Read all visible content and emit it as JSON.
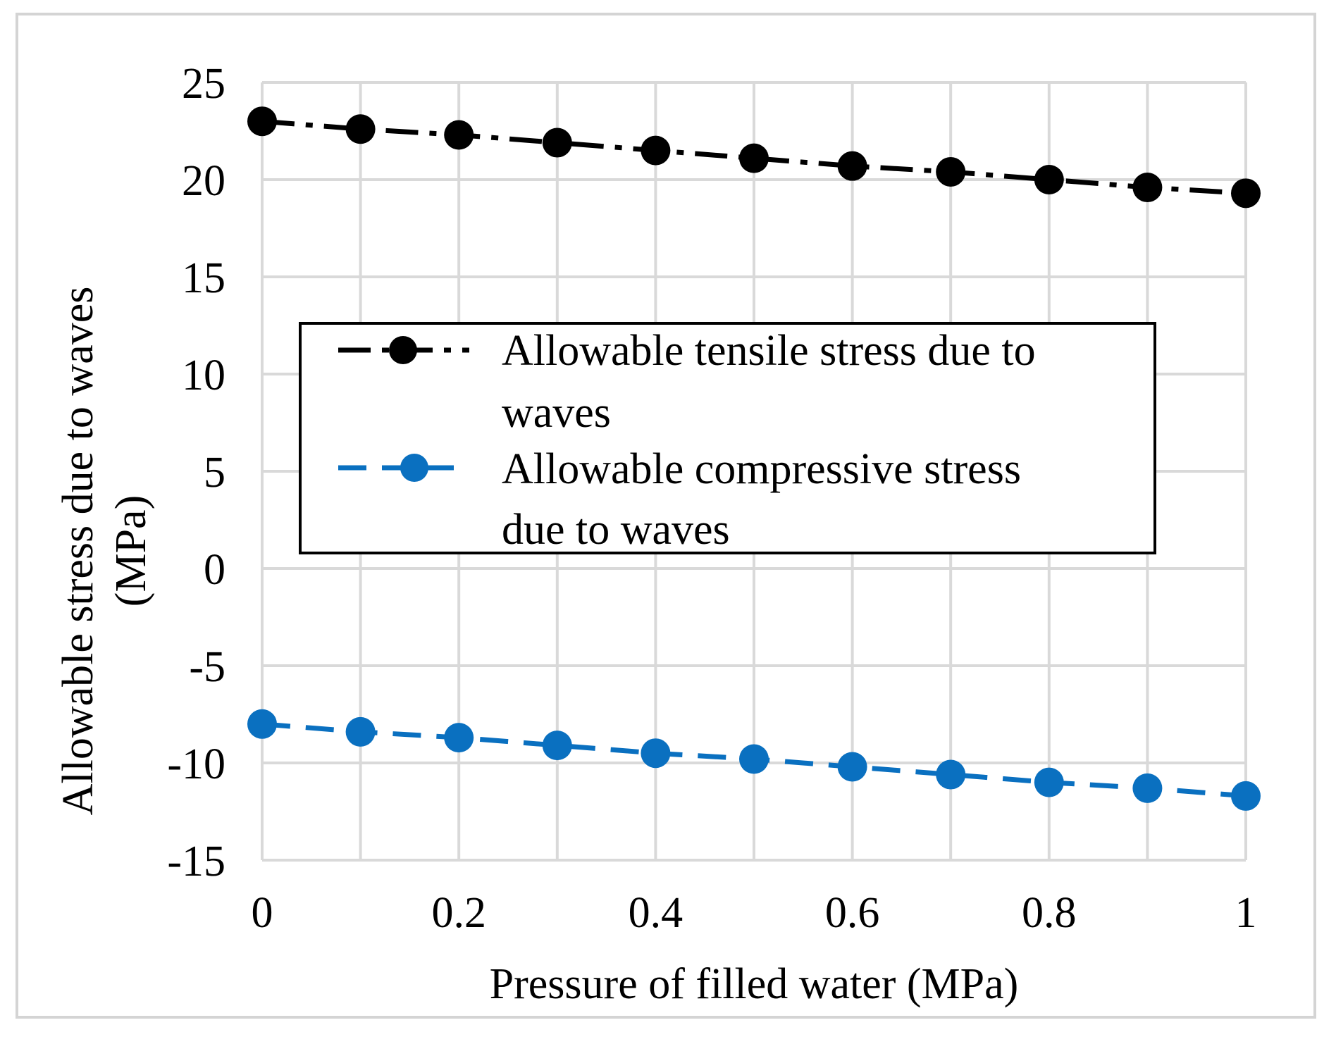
{
  "chart_data": {
    "type": "line",
    "xlabel": "Pressure of filled water (MPa)",
    "ylabel_line1": "Allowable stress due to waves",
    "ylabel_line2": "(MPa)",
    "xlim": [
      0,
      1
    ],
    "ylim": [
      -15,
      25
    ],
    "x_ticks": [
      0,
      0.2,
      0.4,
      0.6,
      0.8,
      1
    ],
    "x_tick_labels": [
      "0",
      "0.2",
      "0.4",
      "0.6",
      "0.8",
      "1"
    ],
    "x_minor_grid": [
      0.1,
      0.3,
      0.5,
      0.7,
      0.9
    ],
    "y_ticks": [
      -15,
      -10,
      -5,
      0,
      5,
      10,
      15,
      20,
      25
    ],
    "y_tick_labels": [
      "-15",
      "-10",
      "-5",
      "0",
      "5",
      "10",
      "15",
      "20",
      "25"
    ],
    "grid": true,
    "legend_position": "center",
    "x": [
      0,
      0.1,
      0.2,
      0.3,
      0.4,
      0.5,
      0.6,
      0.7,
      0.8,
      0.9,
      1.0
    ],
    "series": [
      {
        "name": "Allowable tensile stress due to waves",
        "legend_line1": "Allowable tensile stress due to",
        "legend_line2": "waves",
        "color": "#000000",
        "dash": "dashdot",
        "values": [
          23.0,
          22.6,
          22.3,
          21.9,
          21.5,
          21.1,
          20.7,
          20.4,
          20.0,
          19.6,
          19.3
        ]
      },
      {
        "name": "Allowable compressive stress due to waves",
        "legend_line1": "Allowable compressive stress",
        "legend_line2": "due to waves",
        "color": "#0a70c0",
        "dash": "dash",
        "values": [
          -8.0,
          -8.4,
          -8.7,
          -9.1,
          -9.5,
          -9.8,
          -10.2,
          -10.6,
          -11.0,
          -11.3,
          -11.7
        ]
      }
    ]
  }
}
